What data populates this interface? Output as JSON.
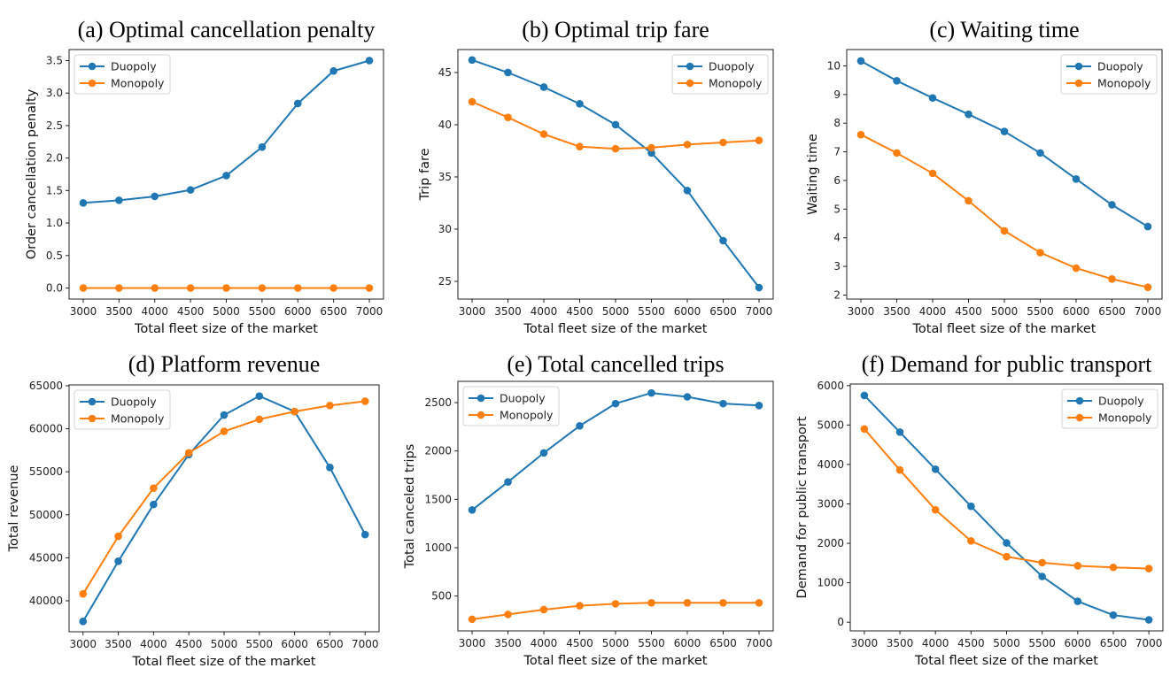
{
  "chart_data": [
    {
      "id": "a",
      "type": "line",
      "title": "(a) Optimal cancellation penalty",
      "xlabel": "Total fleet size of the market",
      "ylabel": "Order cancellation penalty",
      "x": [
        3000,
        3500,
        4000,
        4500,
        5000,
        5500,
        6000,
        6500,
        7000
      ],
      "xticks": [
        "3000",
        "3500",
        "4000",
        "4500",
        "5000",
        "5500",
        "6000",
        "6500",
        "7000"
      ],
      "yticks": [
        "0.0",
        "0.5",
        "1.0",
        "1.5",
        "2.0",
        "2.5",
        "3.0",
        "3.5"
      ],
      "ytick_values": [
        0,
        0.5,
        1.0,
        1.5,
        2.0,
        2.5,
        3.0,
        3.5
      ],
      "ylim": [
        -0.17,
        3.67
      ],
      "legend": "top-left",
      "series": [
        {
          "name": "Duopoly",
          "color": "#1f77b4",
          "values": [
            1.31,
            1.35,
            1.41,
            1.51,
            1.73,
            2.17,
            2.84,
            3.34,
            3.5
          ]
        },
        {
          "name": "Monopoly",
          "color": "#ff7f0e",
          "values": [
            0,
            0,
            0,
            0,
            0,
            0,
            0,
            0,
            0
          ]
        }
      ]
    },
    {
      "id": "b",
      "type": "line",
      "title": "(b) Optimal trip fare",
      "xlabel": "Total fleet size of the market",
      "ylabel": "Trip fare",
      "x": [
        3000,
        3500,
        4000,
        4500,
        5000,
        5500,
        6000,
        6500,
        7000
      ],
      "xticks": [
        "3000",
        "3500",
        "4000",
        "4500",
        "5000",
        "5500",
        "6000",
        "6500",
        "7000"
      ],
      "yticks": [
        "25",
        "30",
        "35",
        "40",
        "45"
      ],
      "ytick_values": [
        25,
        30,
        35,
        40,
        45
      ],
      "ylim": [
        23.3,
        47.2
      ],
      "legend": "top-right",
      "series": [
        {
          "name": "Duopoly",
          "color": "#1f77b4",
          "values": [
            46.2,
            45.0,
            43.6,
            42.0,
            40.0,
            37.3,
            33.7,
            28.9,
            24.4
          ]
        },
        {
          "name": "Monopoly",
          "color": "#ff7f0e",
          "values": [
            42.2,
            40.7,
            39.1,
            37.9,
            37.7,
            37.8,
            38.1,
            38.3,
            38.5
          ]
        }
      ]
    },
    {
      "id": "c",
      "type": "line",
      "title": "(c) Waiting time",
      "xlabel": "Total fleet size of the market",
      "ylabel": "Waiting time",
      "x": [
        3000,
        3500,
        4000,
        4500,
        5000,
        5500,
        6000,
        6500,
        7000
      ],
      "xticks": [
        "3000",
        "3500",
        "4000",
        "4500",
        "5000",
        "5500",
        "6000",
        "6500",
        "7000"
      ],
      "yticks": [
        "2",
        "3",
        "4",
        "5",
        "6",
        "7",
        "8",
        "9",
        "10"
      ],
      "ytick_values": [
        2,
        3,
        4,
        5,
        6,
        7,
        8,
        9,
        10
      ],
      "ylim": [
        1.86,
        10.57
      ],
      "legend": "top-right",
      "series": [
        {
          "name": "Duopoly",
          "color": "#1f77b4",
          "values": [
            10.17,
            9.48,
            8.88,
            8.31,
            7.71,
            6.96,
            6.05,
            5.15,
            4.39
          ]
        },
        {
          "name": "Monopoly",
          "color": "#ff7f0e",
          "values": [
            7.6,
            6.96,
            6.25,
            5.29,
            4.24,
            3.48,
            2.94,
            2.56,
            2.27
          ]
        }
      ]
    },
    {
      "id": "d",
      "type": "line",
      "title": "(d) Platform revenue",
      "xlabel": "Total fleet size of the market",
      "ylabel": "Total revenue",
      "x": [
        3000,
        3500,
        4000,
        4500,
        5000,
        5500,
        6000,
        6500,
        7000
      ],
      "xticks": [
        "3000",
        "3500",
        "4000",
        "4500",
        "5000",
        "5500",
        "6000",
        "6500",
        "7000"
      ],
      "yticks": [
        "40000",
        "45000",
        "50000",
        "55000",
        "60000",
        "65000"
      ],
      "ytick_values": [
        40000,
        45000,
        50000,
        55000,
        60000,
        65000
      ],
      "ylim": [
        36400,
        65100
      ],
      "legend": "top-left",
      "series": [
        {
          "name": "Duopoly",
          "color": "#1f77b4",
          "values": [
            37600,
            44600,
            51200,
            57000,
            61600,
            63800,
            62000,
            55500,
            47700
          ]
        },
        {
          "name": "Monopoly",
          "color": "#ff7f0e",
          "values": [
            40800,
            47500,
            53100,
            57200,
            59700,
            61100,
            62000,
            62700,
            63200
          ]
        }
      ]
    },
    {
      "id": "e",
      "type": "line",
      "title": "(e) Total cancelled trips",
      "xlabel": "Total fleet size of the market",
      "ylabel": "Total canceled trips",
      "x": [
        3000,
        3500,
        4000,
        4500,
        5000,
        5500,
        6000,
        6500,
        7000
      ],
      "xticks": [
        "3000",
        "3500",
        "4000",
        "4500",
        "5000",
        "5500",
        "6000",
        "6500",
        "7000"
      ],
      "yticks": [
        "500",
        "1000",
        "1500",
        "2000",
        "2500"
      ],
      "ytick_values": [
        500,
        1000,
        1500,
        2000,
        2500
      ],
      "ylim": [
        140,
        2720
      ],
      "legend": "top-left",
      "series": [
        {
          "name": "Duopoly",
          "color": "#1f77b4",
          "values": [
            1390,
            1680,
            1980,
            2260,
            2490,
            2600,
            2560,
            2490,
            2470
          ]
        },
        {
          "name": "Monopoly",
          "color": "#ff7f0e",
          "values": [
            260,
            310,
            360,
            400,
            420,
            430,
            430,
            430,
            430
          ]
        }
      ]
    },
    {
      "id": "f",
      "type": "line",
      "title": "(f) Demand for public transport",
      "xlabel": "Total fleet size of the market",
      "ylabel": "Demand for public transport",
      "x": [
        3000,
        3500,
        4000,
        4500,
        5000,
        5500,
        6000,
        6500,
        7000
      ],
      "xticks": [
        "3000",
        "3500",
        "4000",
        "4500",
        "5000",
        "5500",
        "6000",
        "6500",
        "7000"
      ],
      "yticks": [
        "0",
        "1000",
        "2000",
        "3000",
        "4000",
        "5000",
        "6000"
      ],
      "ytick_values": [
        0,
        1000,
        2000,
        3000,
        4000,
        5000,
        6000
      ],
      "ylim": [
        -220,
        6040
      ],
      "legend": "top-right",
      "series": [
        {
          "name": "Duopoly",
          "color": "#1f77b4",
          "values": [
            5750,
            4820,
            3880,
            2940,
            2010,
            1160,
            530,
            180,
            60
          ]
        },
        {
          "name": "Monopoly",
          "color": "#ff7f0e",
          "values": [
            4900,
            3860,
            2850,
            2060,
            1660,
            1510,
            1430,
            1390,
            1360
          ]
        }
      ]
    }
  ]
}
